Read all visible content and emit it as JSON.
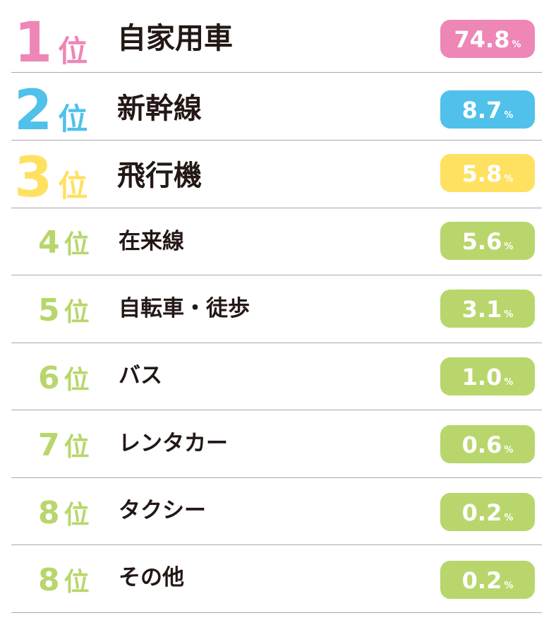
{
  "rank_suffix": "位",
  "unit": "%",
  "colors": {
    "rank1": "#ee86b6",
    "rank2": "#4fc1ea",
    "rank3": "#ffe161",
    "rest": "#b8d66c",
    "text": "#231815",
    "divider": "#a9a9a9"
  },
  "chart_data": {
    "type": "table",
    "unit": "%",
    "rows": [
      {
        "rank": "1",
        "name": "自家用車",
        "value": 74.8,
        "value_text": "74.8"
      },
      {
        "rank": "2",
        "name": "新幹線",
        "value": 8.7,
        "value_text": "8.7"
      },
      {
        "rank": "3",
        "name": "飛行機",
        "value": 5.8,
        "value_text": "5.8"
      },
      {
        "rank": "4",
        "name": "在来線",
        "value": 5.6,
        "value_text": "5.6"
      },
      {
        "rank": "5",
        "name": "自転車・徒歩",
        "value": 3.1,
        "value_text": "3.1"
      },
      {
        "rank": "6",
        "name": "バス",
        "value": 1.0,
        "value_text": "1.0"
      },
      {
        "rank": "7",
        "name": "レンタカー",
        "value": 0.6,
        "value_text": "0.6"
      },
      {
        "rank": "8",
        "name": "タクシー",
        "value": 0.2,
        "value_text": "0.2"
      },
      {
        "rank": "8",
        "name": "その他",
        "value": 0.2,
        "value_text": "0.2"
      }
    ]
  }
}
